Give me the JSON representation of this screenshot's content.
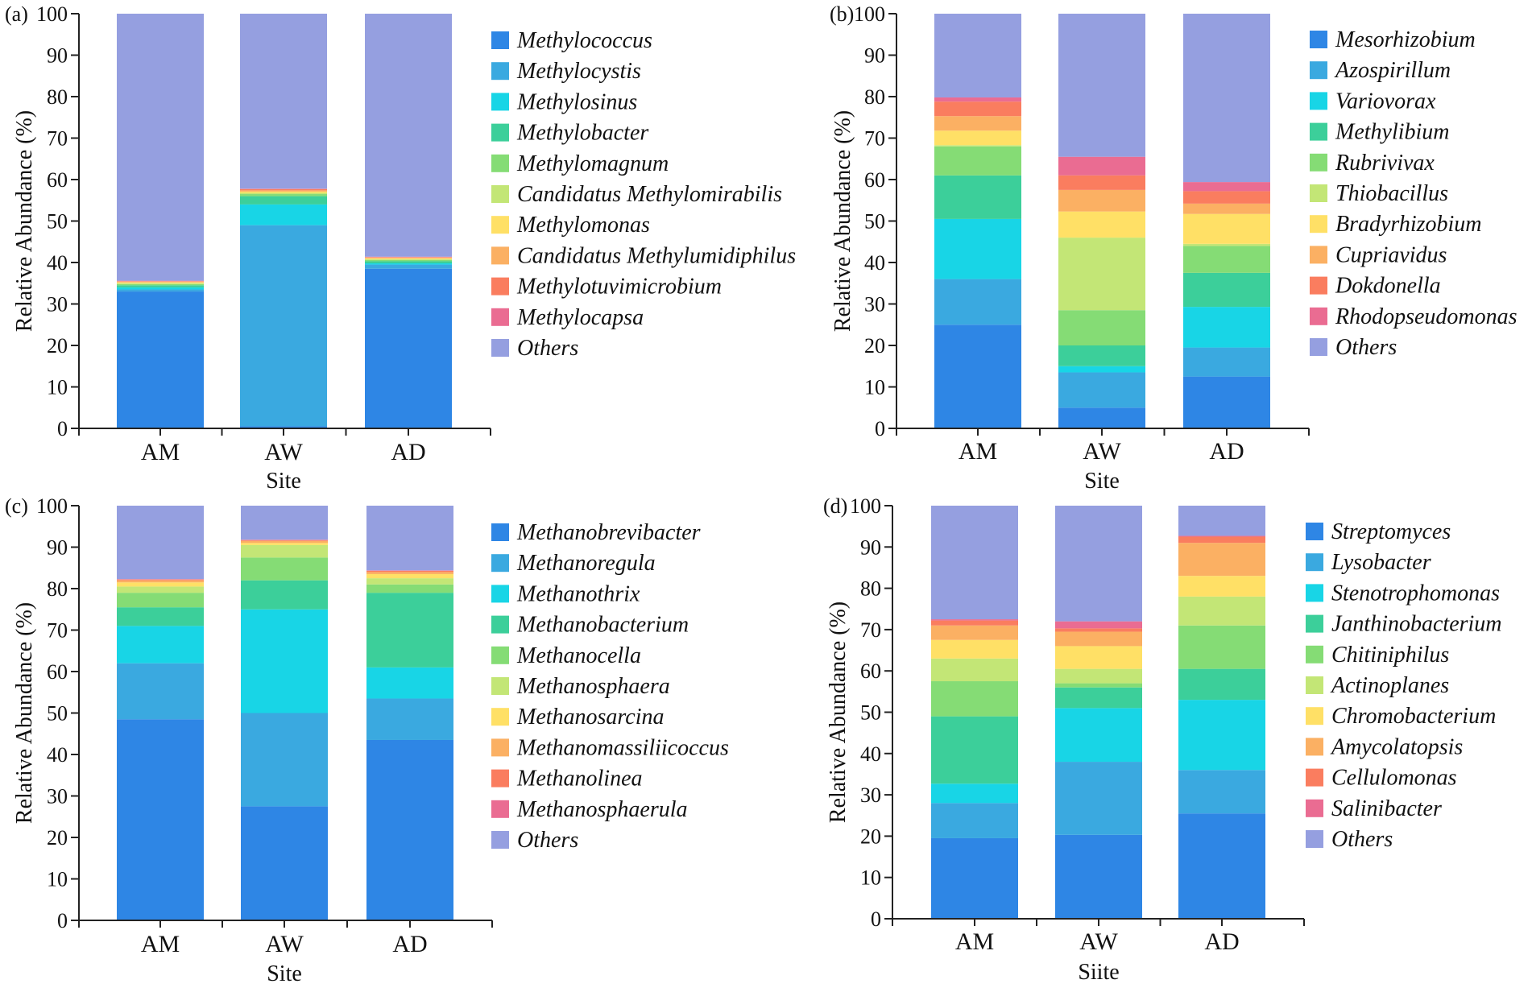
{
  "colors": {
    "palette": [
      "#2e86e5",
      "#3aa9e0",
      "#18d5e6",
      "#3ccf9a",
      "#85dc75",
      "#c3e676",
      "#ffe066",
      "#fbb063",
      "#fa7d5f",
      "#ea6c92",
      "#959fe0"
    ]
  },
  "chart_data": [
    {
      "panel": "(a)",
      "type": "bar",
      "stacked": true,
      "categories": [
        "AM",
        "AW",
        "AD"
      ],
      "xlabel": "Site",
      "ylabel": "Relative Abundance (%)",
      "ylim": [
        0,
        100
      ],
      "yticks": [
        "0",
        "10",
        "20",
        "30",
        "40",
        "50",
        "60",
        "70",
        "80",
        "90",
        "100"
      ],
      "series": [
        {
          "name": "Methylococcus",
          "values": [
            33,
            0.5,
            38.5
          ]
        },
        {
          "name": "Methylocystis",
          "values": [
            0.5,
            48.5,
            1
          ]
        },
        {
          "name": "Methylosinus",
          "values": [
            0.5,
            5,
            0.3
          ]
        },
        {
          "name": "Methylobacter",
          "values": [
            0.5,
            2,
            0.5
          ]
        },
        {
          "name": "Methylomagnum",
          "values": [
            0.3,
            0.5,
            0.3
          ]
        },
        {
          "name": "Candidatus Methylomirabilis",
          "values": [
            0.2,
            0.3,
            0.2
          ]
        },
        {
          "name": "Methylomonas",
          "values": [
            0.2,
            0.3,
            0.2
          ]
        },
        {
          "name": "Candidatus Methylumidiphilus",
          "values": [
            0.2,
            0.3,
            0.2
          ]
        },
        {
          "name": "Methylotuvimicrobium",
          "values": [
            0.1,
            0.3,
            0.1
          ]
        },
        {
          "name": "Methylocapsa",
          "values": [
            0.1,
            0.1,
            0.1
          ]
        },
        {
          "name": "Others",
          "values": [
            64.4,
            42.2,
            58.6
          ]
        }
      ]
    },
    {
      "panel": "(b)",
      "type": "bar",
      "stacked": true,
      "categories": [
        "AM",
        "AW",
        "AD"
      ],
      "xlabel": "Site",
      "ylabel": "Relative Abundance (%)",
      "ylim": [
        0,
        100
      ],
      "yticks": [
        "0",
        "10",
        "20",
        "30",
        "40",
        "50",
        "60",
        "70",
        "80",
        "90",
        "100"
      ],
      "series": [
        {
          "name": "Mesorhizobium",
          "values": [
            25,
            5,
            12.5
          ]
        },
        {
          "name": "Azospirillum",
          "values": [
            11,
            8.5,
            7
          ]
        },
        {
          "name": "Variovorax",
          "values": [
            14.5,
            1.5,
            9.8
          ]
        },
        {
          "name": "Methylibium",
          "values": [
            10.5,
            5,
            8.2
          ]
        },
        {
          "name": "Rubrivivax",
          "values": [
            7,
            8.5,
            6.5
          ]
        },
        {
          "name": "Thiobacillus",
          "values": [
            0.3,
            17.5,
            0.5
          ]
        },
        {
          "name": "Bradyrhizobium",
          "values": [
            3.5,
            6.3,
            7.2
          ]
        },
        {
          "name": "Cupriavidus",
          "values": [
            3.5,
            5.2,
            2.5
          ]
        },
        {
          "name": "Dokdonella",
          "values": [
            3.5,
            3.5,
            3
          ]
        },
        {
          "name": "Rhodopseudomonas",
          "values": [
            1,
            4.5,
            2.2
          ]
        },
        {
          "name": "Others",
          "values": [
            20.2,
            34.5,
            40.6
          ]
        }
      ]
    },
    {
      "panel": "(c)",
      "type": "bar",
      "stacked": true,
      "categories": [
        "AM",
        "AW",
        "AD"
      ],
      "xlabel": "Site",
      "ylabel": "Relative Abundance (%)",
      "ylim": [
        0,
        100
      ],
      "yticks": [
        "0",
        "10",
        "20",
        "30",
        "40",
        "50",
        "60",
        "70",
        "80",
        "90",
        "100"
      ],
      "series": [
        {
          "name": "Methanobrevibacter",
          "values": [
            48.5,
            27.5,
            43.5
          ]
        },
        {
          "name": "Methanoregula",
          "values": [
            13.5,
            22.5,
            10
          ]
        },
        {
          "name": "Methanothrix",
          "values": [
            9,
            25,
            7.5
          ]
        },
        {
          "name": "Methanobacterium",
          "values": [
            4.5,
            7,
            18
          ]
        },
        {
          "name": "Methanocella",
          "values": [
            3.5,
            5.5,
            2
          ]
        },
        {
          "name": "Methanosphaera",
          "values": [
            1.5,
            3,
            1.5
          ]
        },
        {
          "name": "Methanosarcina",
          "values": [
            1,
            0.5,
            1
          ]
        },
        {
          "name": "Methanomassiliicoccus",
          "values": [
            0.5,
            0.5,
            0.5
          ]
        },
        {
          "name": "Methanolinea",
          "values": [
            0.2,
            0.2,
            0.3
          ]
        },
        {
          "name": "Methanosphaerula",
          "values": [
            0.1,
            0.1,
            0.1
          ]
        },
        {
          "name": "Others",
          "values": [
            17.7,
            8.2,
            15.6
          ]
        }
      ]
    },
    {
      "panel": "(d)",
      "type": "bar",
      "stacked": true,
      "categories": [
        "AM",
        "AW",
        "AD"
      ],
      "xlabel": "Siite",
      "ylabel": "Relative Abundance (%)",
      "ylim": [
        0,
        100
      ],
      "yticks": [
        "0",
        "10",
        "20",
        "30",
        "40",
        "50",
        "60",
        "70",
        "80",
        "90",
        "100"
      ],
      "series": [
        {
          "name": "Streptomyces",
          "values": [
            19.5,
            20.3,
            25.5
          ]
        },
        {
          "name": "Lysobacter",
          "values": [
            8.5,
            17.7,
            10.5
          ]
        },
        {
          "name": "Stenotrophomonas",
          "values": [
            4.7,
            13,
            17
          ]
        },
        {
          "name": "Janthinobacterium",
          "values": [
            16.3,
            5,
            7.5
          ]
        },
        {
          "name": "Chitiniphilus",
          "values": [
            8.5,
            1,
            10.5
          ]
        },
        {
          "name": "Actinoplanes",
          "values": [
            5.5,
            3.5,
            7
          ]
        },
        {
          "name": "Chromobacterium",
          "values": [
            4.5,
            5.5,
            5
          ]
        },
        {
          "name": "Amycolatopsis",
          "values": [
            3.5,
            3.5,
            8
          ]
        },
        {
          "name": "Cellulomonas",
          "values": [
            1.2,
            0.8,
            1.5
          ]
        },
        {
          "name": "Salinibacter",
          "values": [
            0.3,
            1.7,
            0.2
          ]
        },
        {
          "name": "Others",
          "values": [
            27.5,
            28,
            7.3
          ]
        }
      ]
    }
  ]
}
